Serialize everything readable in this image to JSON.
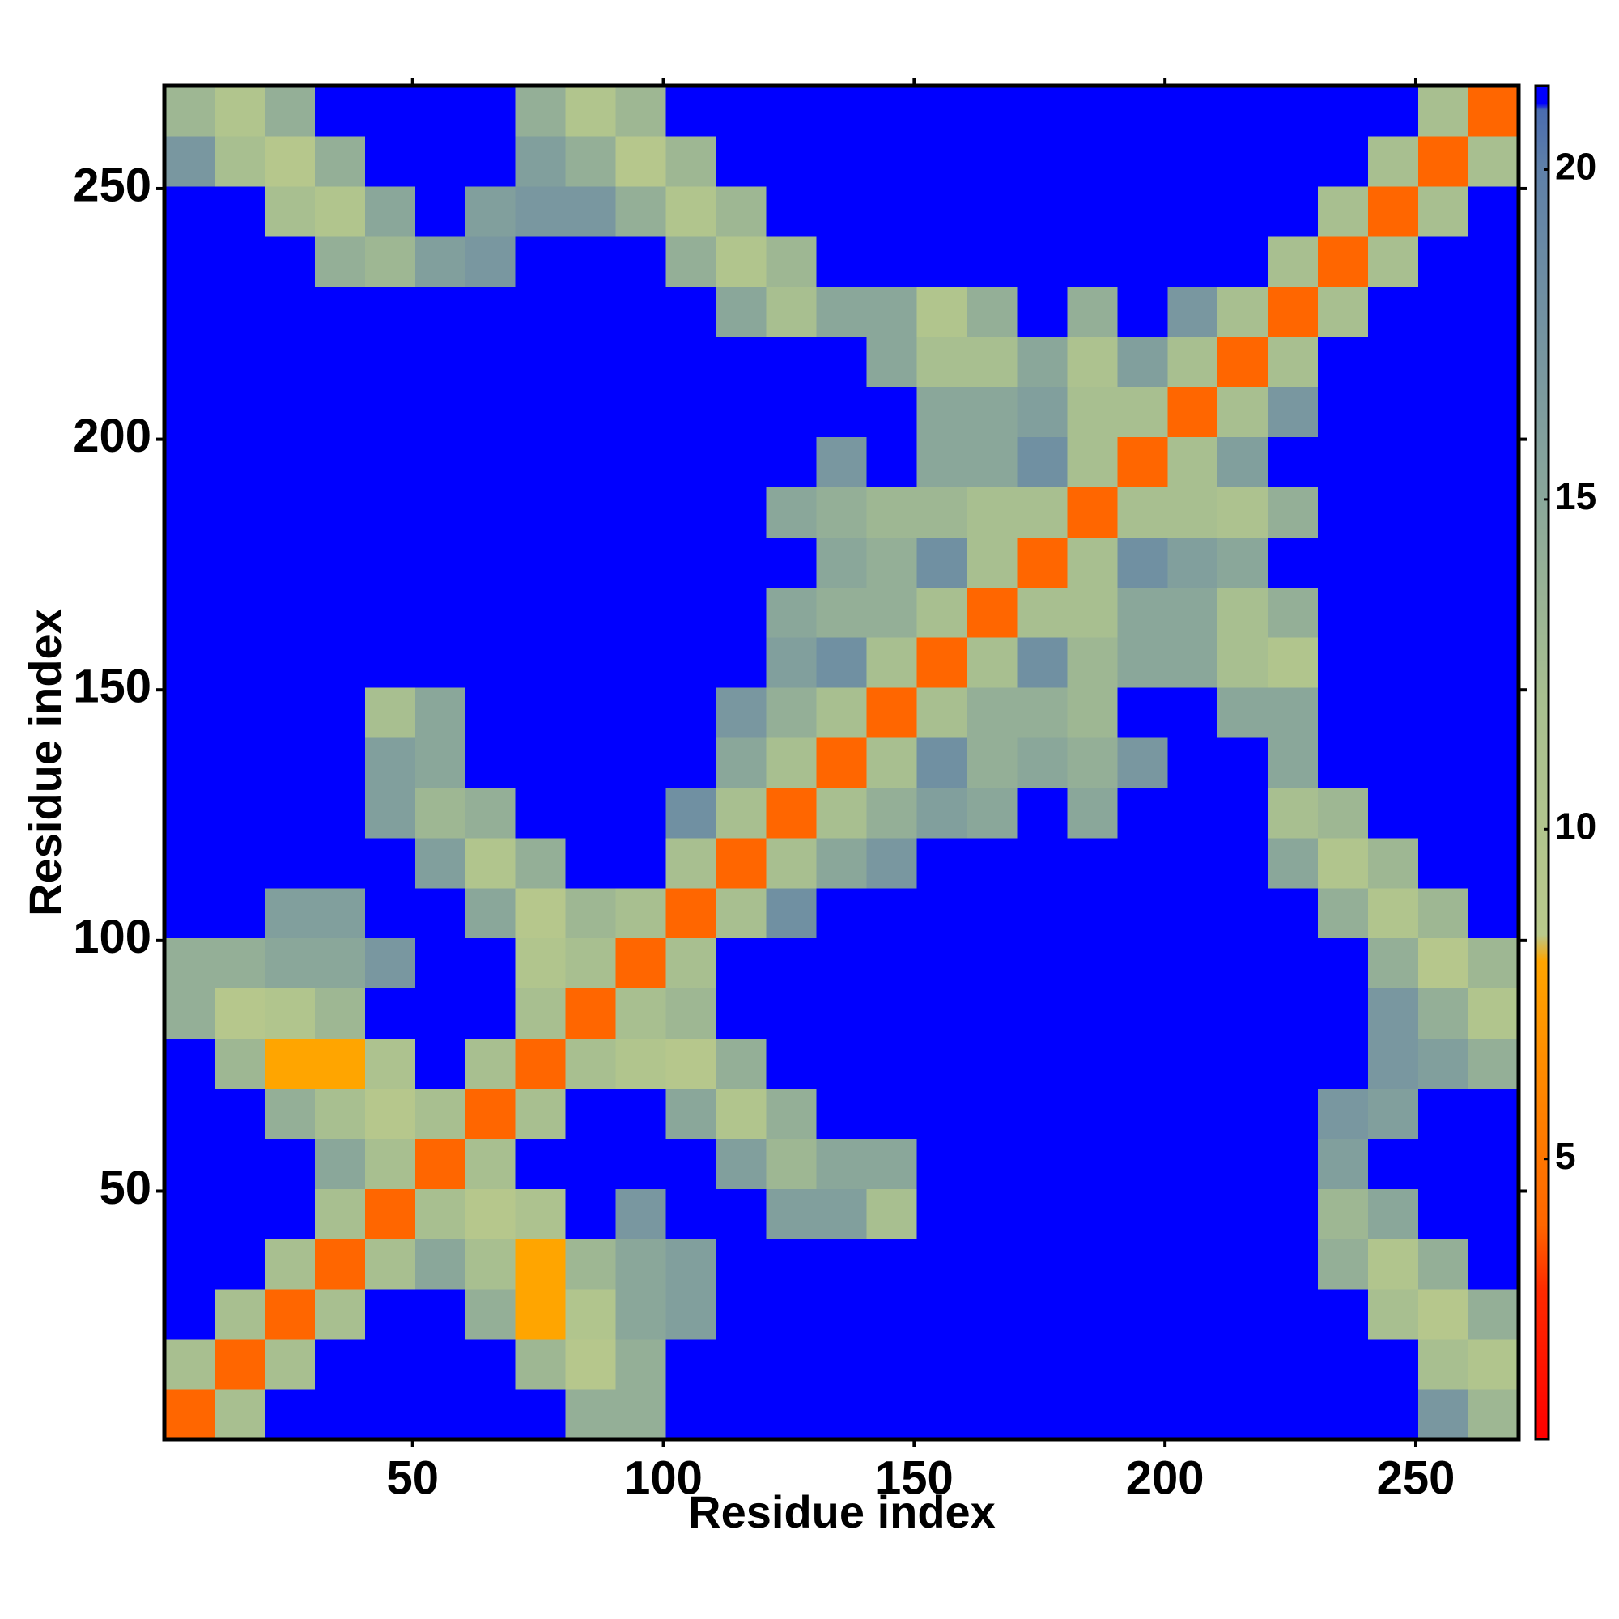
{
  "chart_data": {
    "type": "heatmap",
    "xlabel": "Residue index",
    "ylabel": "Residue index",
    "xlim": [
      0.5,
      270.5
    ],
    "ylim": [
      0.5,
      270.5
    ],
    "xticks": [
      50,
      100,
      150,
      200,
      250
    ],
    "yticks": [
      50,
      100,
      150,
      200,
      250
    ],
    "xbins": [
      0.5,
      10.5,
      20.5,
      30.5,
      40.5,
      50.5,
      60.5,
      70.5,
      80.5,
      90.5,
      100.5,
      110.5,
      120.5,
      130.5,
      140.5,
      150.5,
      160.5,
      170.5,
      180.5,
      190.5,
      200.5,
      210.5,
      220.5,
      230.5,
      240.5,
      250.5,
      260.5,
      270.5
    ],
    "ybins": [
      0.5,
      10.5,
      20.5,
      30.5,
      40.5,
      50.5,
      60.5,
      70.5,
      80.5,
      90.5,
      100.5,
      110.5,
      120.5,
      130.5,
      140.5,
      150.5,
      160.5,
      170.5,
      180.5,
      190.5,
      200.5,
      210.5,
      220.5,
      230.5,
      240.5,
      250.5,
      260.5,
      270.5
    ],
    "clim": [
      0.75,
      21.27
    ],
    "cticks": [
      5,
      10,
      15,
      20
    ],
    "colorscale": [
      {
        "value": 0.75,
        "color": "#ff0000"
      },
      {
        "value": 3,
        "color": "#ff2a00"
      },
      {
        "value": 4,
        "color": "#ff6600"
      },
      {
        "value": 8,
        "color": "#ffa500"
      },
      {
        "value": 8.4,
        "color": "#b9c98b"
      },
      {
        "value": 12,
        "color": "#a8bf90"
      },
      {
        "value": 15,
        "color": "#8aa79a"
      },
      {
        "value": 20,
        "color": "#5f80a8"
      },
      {
        "value": 20.9,
        "color": "#4a6cb0"
      },
      {
        "value": 21,
        "color": "#0000ff"
      },
      {
        "value": 21.27,
        "color": "#0000ff"
      }
    ],
    "z": [
      [
        4,
        12,
        21,
        21,
        21,
        21,
        21,
        21,
        14,
        14,
        21,
        21,
        21,
        21,
        21,
        21,
        21,
        21,
        21,
        21,
        21,
        21,
        21,
        21,
        21,
        17,
        13
      ],
      [
        12,
        4,
        12,
        21,
        21,
        21,
        21,
        13,
        9,
        14,
        21,
        21,
        21,
        21,
        21,
        21,
        21,
        21,
        21,
        21,
        21,
        21,
        21,
        21,
        21,
        12,
        10
      ],
      [
        21,
        12,
        4,
        12,
        21,
        21,
        14,
        8,
        10,
        15,
        16,
        21,
        21,
        21,
        21,
        21,
        21,
        21,
        21,
        21,
        21,
        21,
        21,
        21,
        12,
        9,
        14
      ],
      [
        21,
        21,
        12,
        4,
        12,
        15,
        12,
        8,
        13,
        15,
        16,
        21,
        21,
        21,
        21,
        21,
        21,
        21,
        21,
        21,
        21,
        21,
        21,
        14,
        10,
        14,
        21
      ],
      [
        21,
        21,
        21,
        12,
        4,
        12,
        9,
        11,
        21,
        17,
        21,
        21,
        16,
        16,
        12,
        21,
        21,
        21,
        21,
        21,
        21,
        21,
        21,
        13,
        15,
        21,
        21
      ],
      [
        21,
        21,
        21,
        15,
        12,
        4,
        12,
        21,
        21,
        21,
        21,
        16,
        13,
        15,
        15,
        21,
        21,
        21,
        21,
        21,
        21,
        21,
        21,
        16,
        21,
        21,
        21
      ],
      [
        21,
        21,
        14,
        12,
        9,
        12,
        4,
        12,
        21,
        21,
        15,
        10,
        14,
        21,
        21,
        21,
        21,
        21,
        21,
        21,
        21,
        21,
        21,
        17,
        16,
        21,
        21
      ],
      [
        21,
        13,
        8,
        8,
        11,
        21,
        12,
        4,
        12,
        10,
        9,
        14,
        21,
        21,
        21,
        21,
        21,
        21,
        21,
        21,
        21,
        21,
        21,
        21,
        17,
        16,
        14
      ],
      [
        14,
        9,
        10,
        13,
        21,
        21,
        21,
        12,
        4,
        12,
        13,
        21,
        21,
        21,
        21,
        21,
        21,
        21,
        21,
        21,
        21,
        21,
        21,
        21,
        17,
        14,
        10
      ],
      [
        14,
        14,
        15,
        15,
        17,
        21,
        21,
        10,
        12,
        4,
        12,
        21,
        21,
        21,
        21,
        21,
        21,
        21,
        21,
        21,
        21,
        21,
        21,
        21,
        14,
        9,
        13
      ],
      [
        21,
        21,
        16,
        16,
        21,
        21,
        15,
        9,
        13,
        12,
        4,
        12,
        18,
        21,
        21,
        21,
        21,
        21,
        21,
        21,
        21,
        21,
        21,
        14,
        10,
        13,
        21
      ],
      [
        21,
        21,
        21,
        21,
        21,
        16,
        10,
        14,
        21,
        21,
        12,
        4,
        12,
        15,
        17,
        21,
        21,
        21,
        21,
        21,
        21,
        21,
        15,
        10,
        13,
        21,
        21
      ],
      [
        21,
        21,
        21,
        21,
        16,
        13,
        14,
        21,
        21,
        21,
        18,
        12,
        4,
        12,
        14,
        16,
        15,
        21,
        15,
        21,
        21,
        21,
        12,
        13,
        21,
        21,
        21
      ],
      [
        21,
        21,
        21,
        21,
        16,
        15,
        21,
        21,
        21,
        21,
        21,
        15,
        12,
        4,
        12,
        18,
        14,
        15,
        14,
        17,
        21,
        21,
        15,
        21,
        21,
        21,
        21
      ],
      [
        21,
        21,
        21,
        21,
        12,
        15,
        21,
        21,
        21,
        21,
        21,
        17,
        14,
        12,
        4,
        12,
        14,
        14,
        13,
        21,
        21,
        15,
        15,
        21,
        21,
        21,
        21
      ],
      [
        21,
        21,
        21,
        21,
        21,
        21,
        21,
        21,
        21,
        21,
        21,
        21,
        16,
        18,
        12,
        4,
        12,
        18,
        13,
        15,
        15,
        12,
        10,
        21,
        21,
        21,
        21
      ],
      [
        21,
        21,
        21,
        21,
        21,
        21,
        21,
        21,
        21,
        21,
        21,
        21,
        15,
        14,
        14,
        12,
        4,
        12,
        12,
        15,
        15,
        12,
        14,
        21,
        21,
        21,
        21
      ],
      [
        21,
        21,
        21,
        21,
        21,
        21,
        21,
        21,
        21,
        21,
        21,
        21,
        21,
        15,
        14,
        18,
        12,
        4,
        12,
        18,
        16,
        15,
        21,
        21,
        21,
        21,
        21
      ],
      [
        21,
        21,
        21,
        21,
        21,
        21,
        21,
        21,
        21,
        21,
        21,
        21,
        15,
        14,
        13,
        13,
        12,
        12,
        4,
        12,
        12,
        11,
        14,
        21,
        21,
        21,
        21
      ],
      [
        21,
        21,
        21,
        21,
        21,
        21,
        21,
        21,
        21,
        21,
        21,
        21,
        21,
        17,
        21,
        15,
        15,
        18,
        12,
        4,
        12,
        16,
        21,
        21,
        21,
        21,
        21
      ],
      [
        21,
        21,
        21,
        21,
        21,
        21,
        21,
        21,
        21,
        21,
        21,
        21,
        21,
        21,
        21,
        15,
        15,
        16,
        12,
        12,
        4,
        12,
        17,
        21,
        21,
        21,
        21
      ],
      [
        21,
        21,
        21,
        21,
        21,
        21,
        21,
        21,
        21,
        21,
        21,
        21,
        21,
        21,
        15,
        12,
        12,
        15,
        11,
        16,
        12,
        4,
        12,
        21,
        21,
        21,
        21
      ],
      [
        21,
        21,
        21,
        21,
        21,
        21,
        21,
        21,
        21,
        21,
        21,
        15,
        12,
        15,
        15,
        10,
        14,
        21,
        14,
        21,
        17,
        12,
        4,
        12,
        21,
        21,
        21
      ],
      [
        21,
        21,
        21,
        14,
        13,
        16,
        17,
        21,
        21,
        21,
        14,
        10,
        13,
        21,
        21,
        21,
        21,
        21,
        21,
        21,
        21,
        21,
        12,
        4,
        12,
        21,
        21
      ],
      [
        21,
        21,
        12,
        10,
        15,
        21,
        16,
        17,
        17,
        14,
        10,
        13,
        21,
        21,
        21,
        21,
        21,
        21,
        21,
        21,
        21,
        21,
        21,
        12,
        4,
        12,
        21
      ],
      [
        17,
        12,
        9,
        14,
        21,
        21,
        21,
        16,
        14,
        9,
        13,
        21,
        21,
        21,
        21,
        21,
        21,
        21,
        21,
        21,
        21,
        21,
        21,
        21,
        12,
        4,
        12
      ],
      [
        13,
        10,
        14,
        21,
        21,
        21,
        21,
        14,
        10,
        13,
        21,
        21,
        21,
        21,
        21,
        21,
        21,
        21,
        21,
        21,
        21,
        21,
        21,
        21,
        21,
        12,
        4
      ]
    ]
  }
}
